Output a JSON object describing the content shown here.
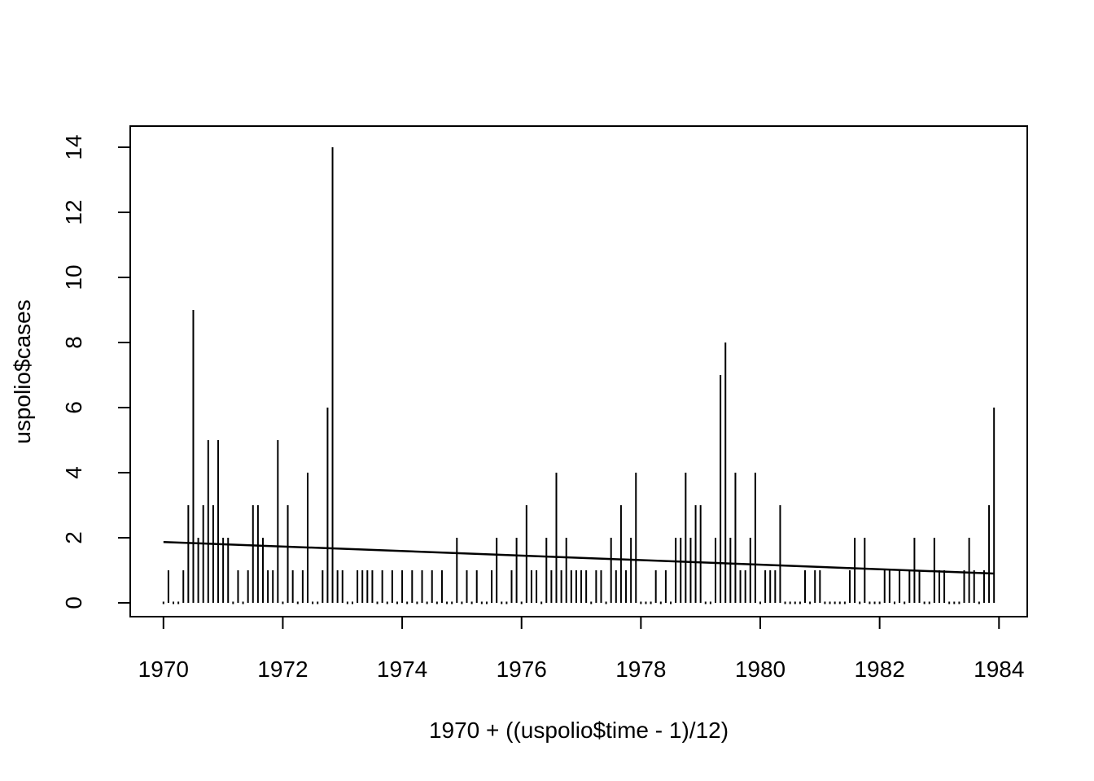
{
  "figure": {
    "background_color": "#ffffff",
    "stroke_color": "#000000"
  },
  "chart_data": {
    "type": "bar",
    "subtype": "vertical-spike-plot (R type='h') with fitted trend line",
    "title": "",
    "xlabel": "1970 + ((uspolio$time - 1)/12)",
    "ylabel": "uspolio$cases",
    "x_start_year": 1970,
    "x_end_year": 1983.9167,
    "ylim": [
      0,
      14
    ],
    "xtick_years": [
      1970,
      1972,
      1974,
      1976,
      1978,
      1980,
      1982,
      1984
    ],
    "xtick_labels": [
      "1970",
      "1972",
      "1974",
      "1976",
      "1978",
      "1980",
      "1982",
      "1984"
    ],
    "ytick_values": [
      0,
      2,
      4,
      6,
      8,
      10,
      12,
      14
    ],
    "ytick_labels": [
      "0",
      "2",
      "4",
      "6",
      "8",
      "10",
      "12",
      "14"
    ],
    "grid": "off",
    "legend": "none",
    "series": [
      {
        "name": "uspolio$cases (monthly counts)",
        "values_by_year": [
          {
            "year": 1970,
            "monthly": [
              0,
              1,
              0,
              0,
              1,
              3,
              9,
              2,
              3,
              5,
              3,
              5
            ]
          },
          {
            "year": 1971,
            "monthly": [
              2,
              2,
              0,
              1,
              0,
              1,
              3,
              3,
              2,
              1,
              1,
              5
            ]
          },
          {
            "year": 1972,
            "monthly": [
              0,
              3,
              1,
              0,
              1,
              4,
              0,
              0,
              1,
              6,
              14,
              1
            ]
          },
          {
            "year": 1973,
            "monthly": [
              1,
              0,
              0,
              1,
              1,
              1,
              1,
              0,
              1,
              0,
              1,
              0
            ]
          },
          {
            "year": 1974,
            "monthly": [
              1,
              0,
              1,
              0,
              1,
              0,
              1,
              0,
              1,
              0,
              0,
              2
            ]
          },
          {
            "year": 1975,
            "monthly": [
              0,
              1,
              0,
              1,
              0,
              0,
              1,
              2,
              0,
              0,
              1,
              2
            ]
          },
          {
            "year": 1976,
            "monthly": [
              0,
              3,
              1,
              1,
              0,
              2,
              1,
              4,
              1,
              2,
              1,
              1
            ]
          },
          {
            "year": 1977,
            "monthly": [
              1,
              1,
              0,
              1,
              1,
              0,
              2,
              1,
              3,
              1,
              2,
              4
            ]
          },
          {
            "year": 1978,
            "monthly": [
              0,
              0,
              0,
              1,
              0,
              1,
              0,
              2,
              2,
              4,
              2,
              3
            ]
          },
          {
            "year": 1979,
            "monthly": [
              3,
              0,
              0,
              2,
              7,
              8,
              2,
              4,
              1,
              1,
              2,
              4
            ]
          },
          {
            "year": 1980,
            "monthly": [
              0,
              1,
              1,
              1,
              3,
              0,
              0,
              0,
              0,
              1,
              0,
              1
            ]
          },
          {
            "year": 1981,
            "monthly": [
              1,
              0,
              0,
              0,
              0,
              0,
              1,
              2,
              0,
              2,
              0,
              0
            ]
          },
          {
            "year": 1982,
            "monthly": [
              0,
              1,
              1,
              0,
              1,
              0,
              1,
              2,
              1,
              0,
              0,
              2
            ]
          },
          {
            "year": 1983,
            "monthly": [
              1,
              1,
              0,
              0,
              0,
              1,
              2,
              1,
              0,
              1,
              3,
              6
            ]
          }
        ]
      }
    ],
    "trend_line": {
      "description": "fitted declining trend drawn from first to last observation",
      "start_year": 1970.0,
      "start_value": 1.87,
      "end_year": 1983.9167,
      "end_value": 0.9
    },
    "zero_value_marker": "small dot on baseline at each zero-count month"
  }
}
